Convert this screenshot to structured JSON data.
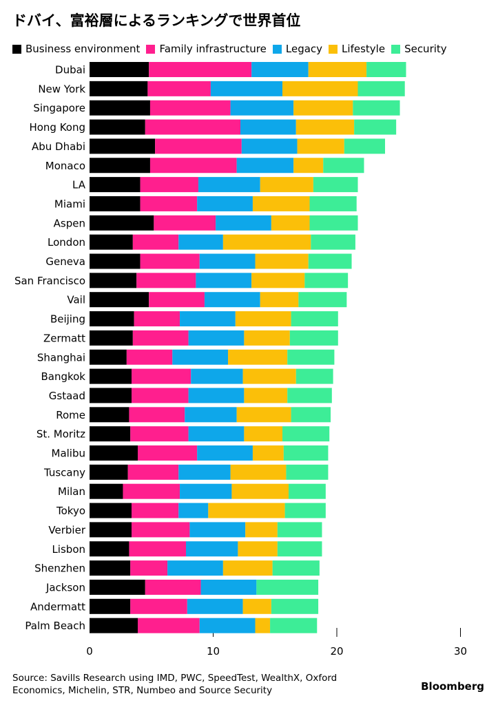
{
  "chart_data": {
    "type": "bar",
    "orientation": "horizontal",
    "stacked": true,
    "title": "ドバイ、富裕層によるランキングで世界首位",
    "xlim": [
      0,
      30
    ],
    "x_ticks": [
      0,
      10,
      20,
      30
    ],
    "legend_position": "top",
    "categories": [
      "Dubai",
      "New York",
      "Singapore",
      "Hong Kong",
      "Abu Dhabi",
      "Monaco",
      "LA",
      "Miami",
      "Aspen",
      "London",
      "Geneva",
      "San Francisco",
      "Vail",
      "Beijing",
      "Zermatt",
      "Shanghai",
      "Bangkok",
      "Gstaad",
      "Rome",
      "St. Moritz",
      "Malibu",
      "Tuscany",
      "Milan",
      "Tokyo",
      "Verbier",
      "Lisbon",
      "Shenzhen",
      "Jackson",
      "Andermatt",
      "Palm Beach"
    ],
    "series": [
      {
        "name": "Business environment",
        "color": "#000000",
        "values": [
          4.8,
          4.7,
          4.9,
          4.5,
          5.3,
          4.9,
          4.1,
          4.1,
          5.2,
          3.5,
          4.1,
          3.8,
          4.8,
          3.6,
          3.5,
          3.0,
          3.4,
          3.4,
          3.2,
          3.3,
          3.9,
          3.1,
          2.7,
          3.4,
          3.4,
          3.2,
          3.3,
          4.5,
          3.3,
          3.9
        ]
      },
      {
        "name": "Family infrastructure",
        "color": "#ff1f8e",
        "values": [
          8.3,
          5.1,
          6.5,
          7.7,
          7.0,
          7.0,
          4.7,
          4.6,
          5.0,
          3.7,
          4.8,
          4.8,
          4.5,
          3.7,
          4.5,
          3.7,
          4.8,
          4.6,
          4.5,
          4.7,
          4.8,
          4.1,
          4.6,
          3.8,
          4.7,
          4.6,
          3.0,
          4.5,
          4.6,
          5.0
        ]
      },
      {
        "name": "Legacy",
        "color": "#0ea7ea",
        "values": [
          4.6,
          5.8,
          5.1,
          4.5,
          4.5,
          4.6,
          5.0,
          4.5,
          4.5,
          3.6,
          4.5,
          4.5,
          4.5,
          4.5,
          4.5,
          4.5,
          4.2,
          4.5,
          4.2,
          4.5,
          4.5,
          4.2,
          4.2,
          2.4,
          4.5,
          4.2,
          4.5,
          4.5,
          4.5,
          4.5
        ]
      },
      {
        "name": "Lifestyle",
        "color": "#fbbf09",
        "values": [
          4.7,
          6.1,
          4.8,
          4.7,
          3.8,
          2.4,
          4.3,
          4.6,
          3.1,
          7.1,
          4.3,
          4.3,
          3.1,
          4.5,
          3.7,
          4.8,
          4.3,
          3.5,
          4.4,
          3.1,
          2.5,
          4.5,
          4.6,
          6.2,
          2.6,
          3.2,
          4.0,
          0.0,
          2.3,
          1.2
        ]
      },
      {
        "name": "Security",
        "color": "#3ded97",
        "values": [
          3.2,
          3.8,
          3.8,
          3.4,
          3.3,
          3.3,
          3.6,
          3.8,
          3.9,
          3.6,
          3.5,
          3.5,
          3.9,
          3.8,
          3.9,
          3.8,
          3.0,
          3.6,
          3.2,
          3.8,
          3.6,
          3.4,
          3.0,
          3.3,
          3.6,
          3.6,
          3.8,
          5.0,
          3.8,
          3.8
        ]
      }
    ]
  },
  "source": "Source: Savills Research using IMD, PWC, SpeedTest, WealthX, Oxford Economics, Michelin, STR, Numbeo and Source Security",
  "brand": "Bloomberg"
}
